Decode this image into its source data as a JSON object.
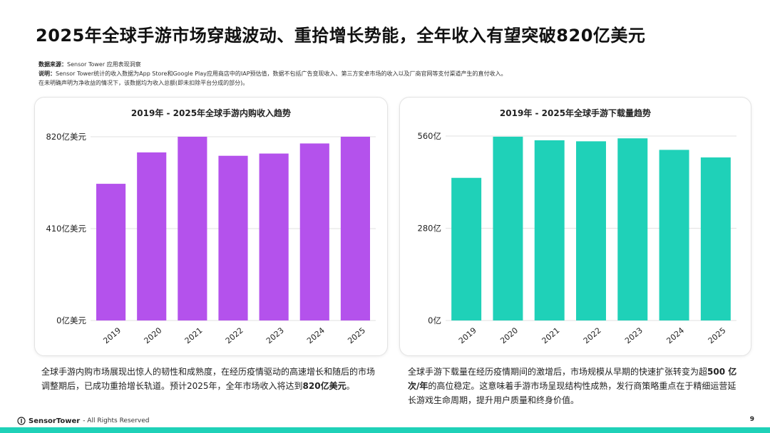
{
  "title": "2025年全球手游市场穿越波动、重拾增长势能，全年收入有望突破820亿美元",
  "notes": {
    "source_label": "数据来源：",
    "source_text": "Sensor Tower 应用表现洞察",
    "explain_label": "说明：",
    "explain_text": "Sensor Tower统计的收入数据为App Store和Google Play应用商店中的IAP预估值，数据不包括广告变现收入、第三方安卓市场的收入以及厂商官网等支付渠道产生的直付收入。",
    "explain_text2": "在未明确声明为净收益的情况下，该数据均为收入总额(即未扣除平台分成的部分)。"
  },
  "chart_data": [
    {
      "type": "bar",
      "title": "2019年 - 2025年全球手游内购收入趋势",
      "categories": [
        "2019",
        "2020",
        "2021",
        "2022",
        "2023",
        "2024",
        "2025"
      ],
      "values": [
        610,
        750,
        820,
        735,
        745,
        790,
        820
      ],
      "ylim": [
        0,
        820
      ],
      "yticks": [
        0,
        410,
        820
      ],
      "ytick_labels": [
        "0亿美元",
        "410亿美元",
        "820亿美元"
      ],
      "color": "#b452ec",
      "grid": true
    },
    {
      "type": "bar",
      "title": "2019年 - 2025年全球手游下载量趋势",
      "categories": [
        "2019",
        "2020",
        "2021",
        "2022",
        "2023",
        "2024",
        "2025"
      ],
      "values": [
        433,
        558,
        547,
        544,
        553,
        518,
        495
      ],
      "ylim": [
        0,
        560
      ],
      "yticks": [
        0,
        280,
        560
      ],
      "ytick_labels": [
        "0亿",
        "280亿",
        "560亿"
      ],
      "color": "#1fd1b8",
      "grid": true
    }
  ],
  "desc_left": {
    "text": "全球手游内购市场展现出惊人的韧性和成熟度，在经历疫情驱动的高速增长和随后的市场调整期后，已成功重拾增长轨道。预计2025年，全年市场收入将达到",
    "bold": "820亿美元",
    "tail": "。"
  },
  "desc_right": {
    "text1": "全球手游下载量在经历疫情期间的激增后，市场规模从早期的快速扩张转变为超",
    "bold": "500 亿次/年",
    "text2": "的高位稳定。这意味着手游市场呈现结构性成熟，发行商策略重点在于精细运营延长游戏生命周期，提升用户质量和终身价值。"
  },
  "footer": {
    "brand": "SensorTower",
    "rights": "- All Rights Reserved",
    "page": "9"
  },
  "colors": {
    "accent": "#1fd1b8",
    "purple": "#b452ec"
  }
}
